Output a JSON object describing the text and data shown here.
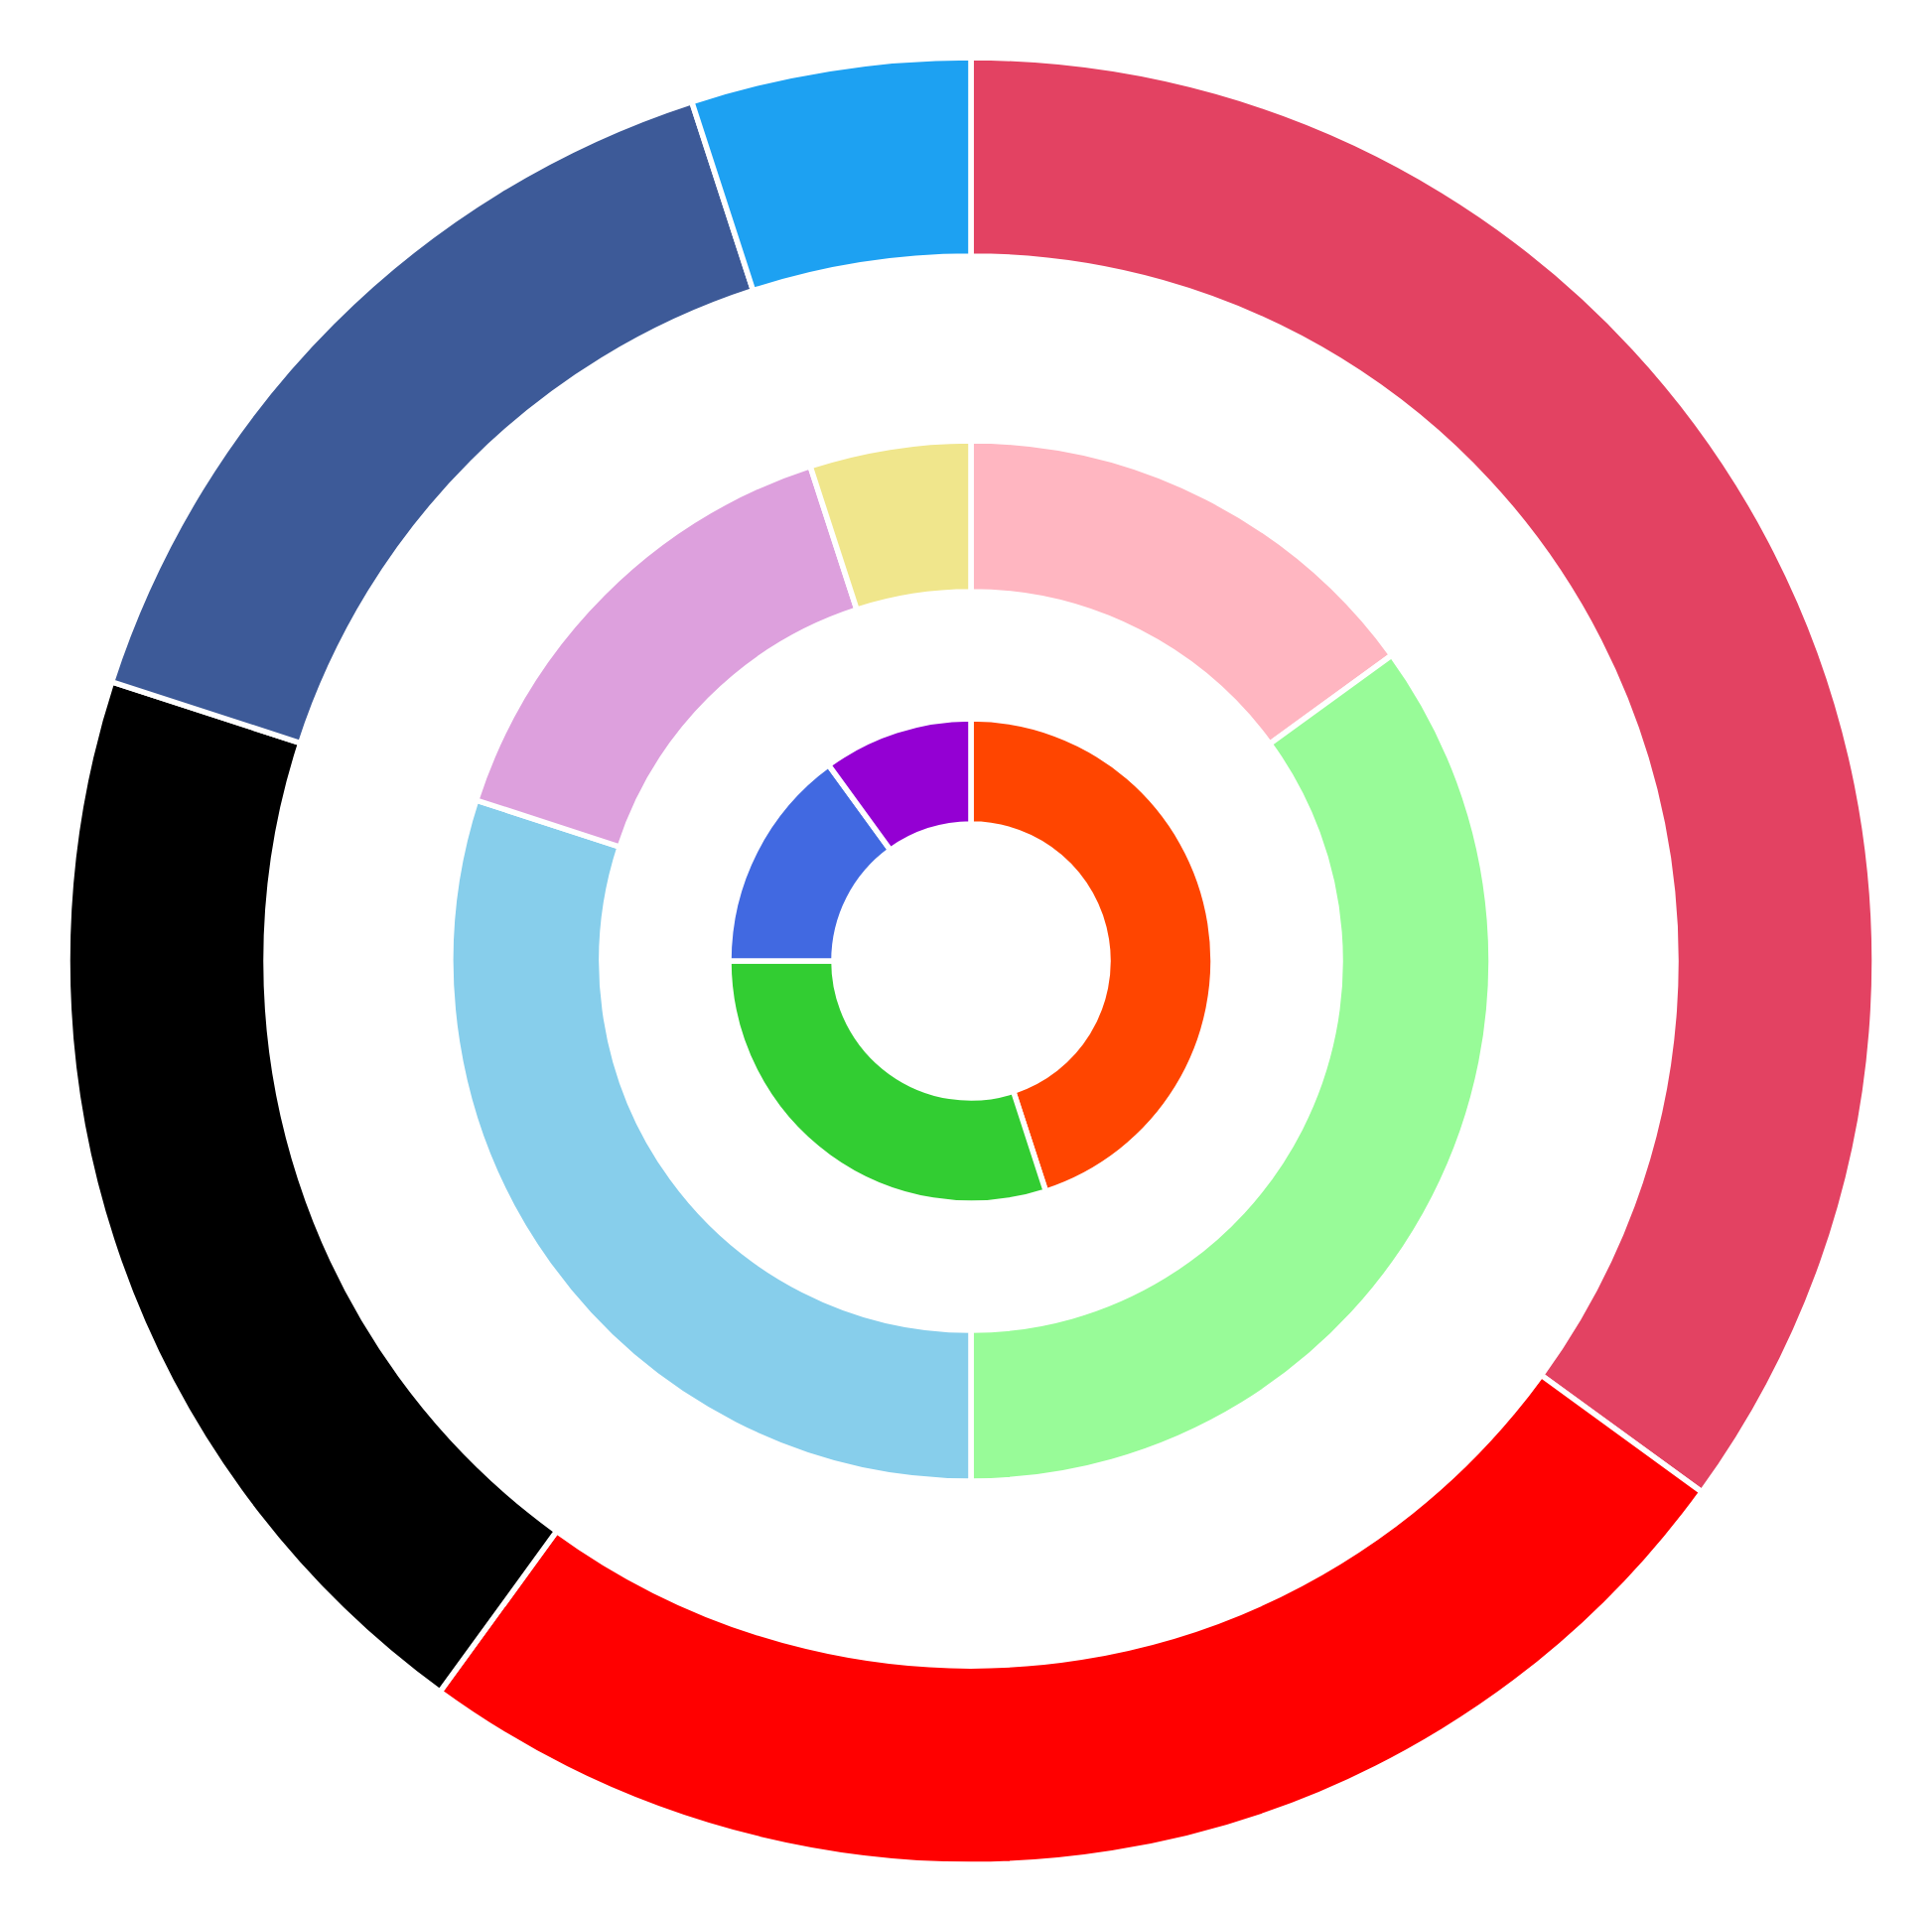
{
  "chart_data": {
    "type": "donut",
    "series": [
      {
        "values": [
          35,
          25,
          20,
          15,
          5
        ],
        "colors": [
          "#e34262",
          "#ff0000",
          "#000000",
          "#3d5a98",
          "#1da1f2"
        ]
      },
      {
        "values": [
          15,
          35,
          30,
          15,
          5
        ],
        "colors": [
          "#ffb6c1",
          "#98fb98",
          "#87ceeb",
          "#dda0dd",
          "#f0e68c"
        ]
      },
      {
        "values": [
          45,
          30,
          15,
          10
        ],
        "colors": [
          "#ff4500",
          "#32cd32",
          "#4169e1",
          "#9400d3"
        ]
      }
    ]
  }
}
